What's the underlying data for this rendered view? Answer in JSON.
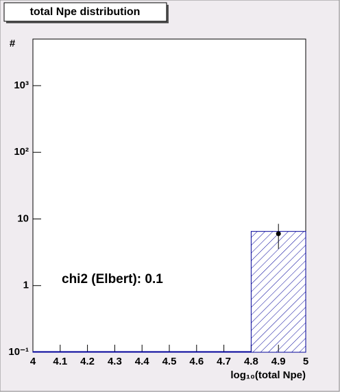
{
  "chart_data": {
    "type": "histogram",
    "title": "total Npe distribution",
    "x_label": "log₁₀(total Npe)",
    "y_label": "#",
    "annotation": "chi2 (Elbert): 0.1",
    "log_y": true,
    "bins": [
      4,
      4.2,
      4.4,
      4.6,
      4.8,
      5
    ],
    "counts": [
      0,
      0,
      0,
      0,
      6.5
    ],
    "color": "#000099",
    "points": {
      "x": [
        4.9
      ],
      "y": [
        6
      ],
      "yerr": [
        2.45
      ],
      "color": "#000000"
    },
    "xlim": [
      4,
      5
    ],
    "ylim": [
      0.1,
      5000
    ],
    "xticks": [
      4,
      4.1,
      4.2,
      4.3,
      4.4,
      4.5,
      4.6,
      4.7,
      4.8,
      4.9,
      5
    ],
    "yticks": [
      {
        "value": 0.1,
        "label": "10⁻¹"
      },
      1,
      10,
      {
        "value": 100,
        "label": "10²"
      },
      {
        "value": 1000,
        "label": "10³"
      }
    ]
  }
}
